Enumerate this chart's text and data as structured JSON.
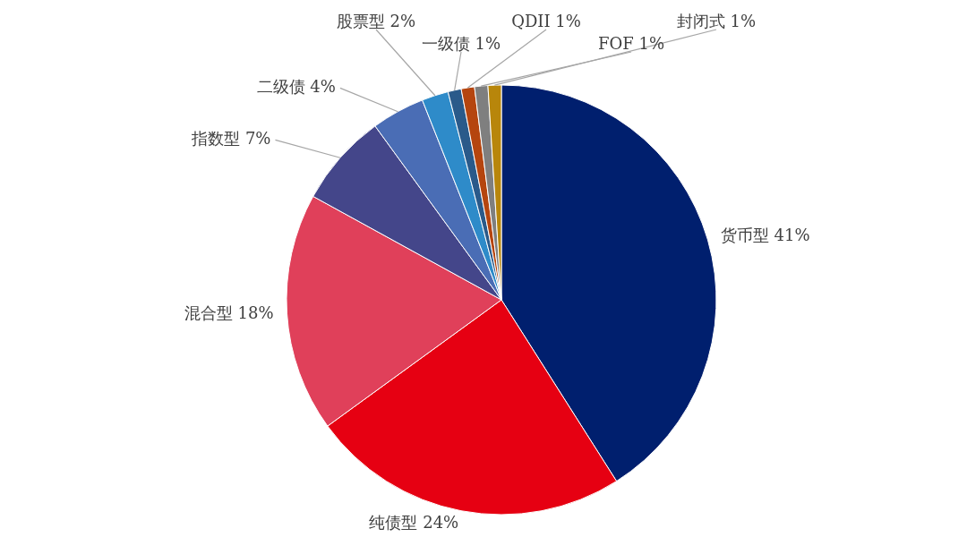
{
  "chart_data": {
    "type": "pie",
    "categories": [
      "货币型",
      "纯债型",
      "混合型",
      "指数型",
      "二级债",
      "股票型",
      "一级债",
      "QDII",
      "FOF",
      "封闭式"
    ],
    "values": [
      41,
      24,
      18,
      7,
      4,
      2,
      1,
      1,
      1,
      1
    ],
    "colors": [
      "#001f6e",
      "#e60012",
      "#e0405a",
      "#44468a",
      "#4a6db5",
      "#2e8bc9",
      "#2a5a8a",
      "#b5450f",
      "#7f7f7f",
      "#b8860b"
    ],
    "value_labels": [
      "41%",
      "24%",
      "18%",
      "7%",
      "4%",
      "2%",
      "1%",
      "1%",
      "1%",
      "1%"
    ]
  }
}
